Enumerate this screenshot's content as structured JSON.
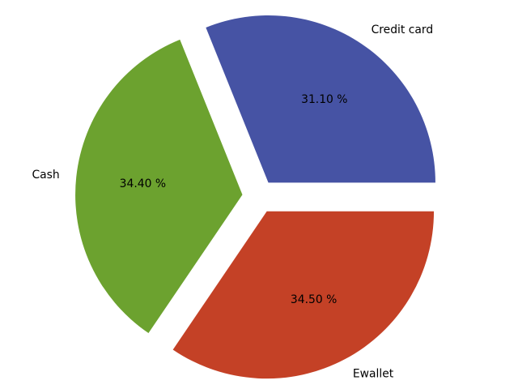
{
  "chart_data": {
    "type": "pie",
    "title": "",
    "categories": [
      "Credit card",
      "Cash",
      "Ewallet"
    ],
    "values": [
      31.1,
      34.4,
      34.5
    ],
    "value_labels": [
      "31.10 %",
      "34.40 %",
      "34.50 %"
    ],
    "colors": [
      "#4653a4",
      "#6ca22f",
      "#c44126"
    ],
    "exploded": true,
    "legend": "none"
  }
}
